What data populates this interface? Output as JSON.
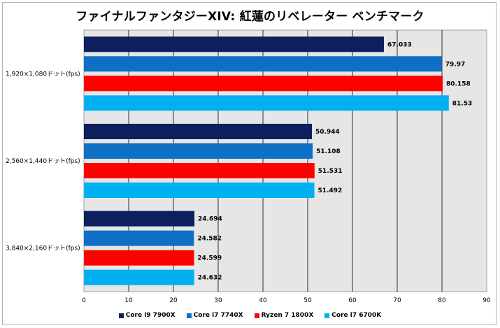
{
  "chart_data": {
    "type": "bar",
    "orientation": "horizontal",
    "title": "ファイナルファンタジーXIV: 紅蓮のリベレーター ベンチマーク",
    "xlabel": "",
    "ylabel": "",
    "xlim": [
      0,
      90
    ],
    "ticks": [
      0,
      10,
      20,
      30,
      40,
      50,
      60,
      70,
      80,
      90
    ],
    "grid": true,
    "legend_position": "bottom",
    "categories": [
      "1,920×1,080ドット(fps)",
      "2,560×1,440ドット(fps)",
      "3,840×2,160ドット(fps)"
    ],
    "series": [
      {
        "name": "Core i9 7900X",
        "color": "#0d1f5c",
        "values": [
          67.033,
          50.944,
          24.694
        ],
        "labels": [
          "67.033",
          "50.944",
          "24.694"
        ]
      },
      {
        "name": "Core i7 7740X",
        "color": "#0f6fc4",
        "values": [
          79.97,
          51.108,
          24.582
        ],
        "labels": [
          "79.97",
          "51.108",
          "24.582"
        ]
      },
      {
        "name": "Ryzen 7 1800X",
        "color": "#ff0000",
        "values": [
          80.158,
          51.531,
          24.599
        ],
        "labels": [
          "80.158",
          "51.531",
          "24.599"
        ]
      },
      {
        "name": "Core i7 6700K",
        "color": "#00b0f0",
        "values": [
          81.53,
          51.492,
          24.632
        ],
        "labels": [
          "81.53",
          "51.492",
          "24.632"
        ]
      }
    ]
  }
}
